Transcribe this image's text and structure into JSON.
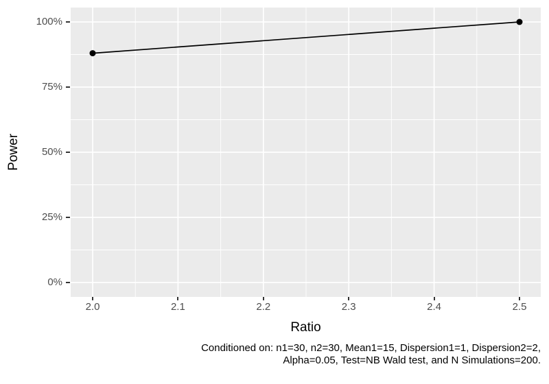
{
  "chart_data": {
    "type": "line",
    "title": "",
    "xlabel": "Ratio",
    "ylabel": "Power",
    "series": [
      {
        "name": "Power",
        "points": [
          {
            "x": 2.0,
            "y": 88
          },
          {
            "x": 2.5,
            "y": 100
          }
        ]
      }
    ],
    "xlim": [
      2.0,
      2.5
    ],
    "ylim_percent": [
      0,
      100
    ],
    "x_ticks": [
      "2.0",
      "2.1",
      "2.2",
      "2.3",
      "2.4",
      "2.5"
    ],
    "y_ticks": [
      "0%",
      "25%",
      "50%",
      "75%",
      "100%"
    ],
    "grid": {
      "major": true,
      "minor": true
    },
    "legend": "none",
    "caption": [
      "Conditioned on: n1=30, n2=30, Mean1=15, Dispersion1=1, Dispersion2=2,",
      "Alpha=0.05, Test=NB Wald test, and N Simulations=200."
    ],
    "colors": {
      "page_background": "#FFFFFF",
      "panel_background": "#EBEBEB",
      "grid_line": "#FFFFFF",
      "series_line": "#000000",
      "point": "#000000",
      "tick_text": "#4D4D4D",
      "axis_title_text": "#000000",
      "caption_text": "#000000",
      "tick_mark": "#333333"
    }
  }
}
